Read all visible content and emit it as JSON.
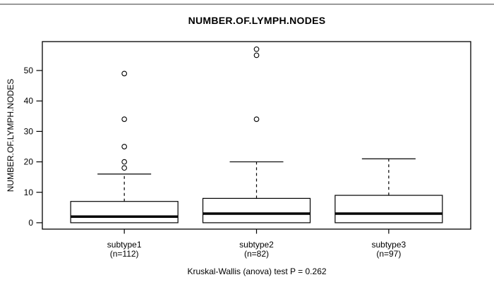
{
  "chart_data": {
    "type": "boxplot",
    "title": "NUMBER.OF.LYMPH.NODES",
    "ylabel": "NUMBER.OF.LYMPH.NODES",
    "xlabel": "",
    "caption": "Kruskal-Wallis (anova) test P = 0.262",
    "grid": false,
    "legend": null,
    "y_axis": {
      "min": -2.1,
      "max": 59.5,
      "ticks": [
        0,
        10,
        20,
        30,
        40,
        50
      ]
    },
    "groups": [
      {
        "label": "subtype1",
        "n_label": "(n=112)",
        "n": 112,
        "stats": {
          "whisker_low": 0,
          "q1": 0,
          "median": 2,
          "q3": 7,
          "whisker_high": 16
        },
        "outliers": [
          18,
          20,
          25,
          34,
          49
        ]
      },
      {
        "label": "subtype2",
        "n_label": "(n=82)",
        "n": 82,
        "stats": {
          "whisker_low": 0,
          "q1": 0,
          "median": 3,
          "q3": 8,
          "whisker_high": 20
        },
        "outliers": [
          34,
          55,
          57
        ]
      },
      {
        "label": "subtype3",
        "n_label": "(n=97)",
        "n": 97,
        "stats": {
          "whisker_low": 0,
          "q1": 0,
          "median": 3,
          "q3": 9,
          "whisker_high": 21
        },
        "outliers": []
      }
    ],
    "colors": {
      "line": "#000000",
      "box_fill": "#ffffff",
      "background": "#ffffff"
    }
  }
}
